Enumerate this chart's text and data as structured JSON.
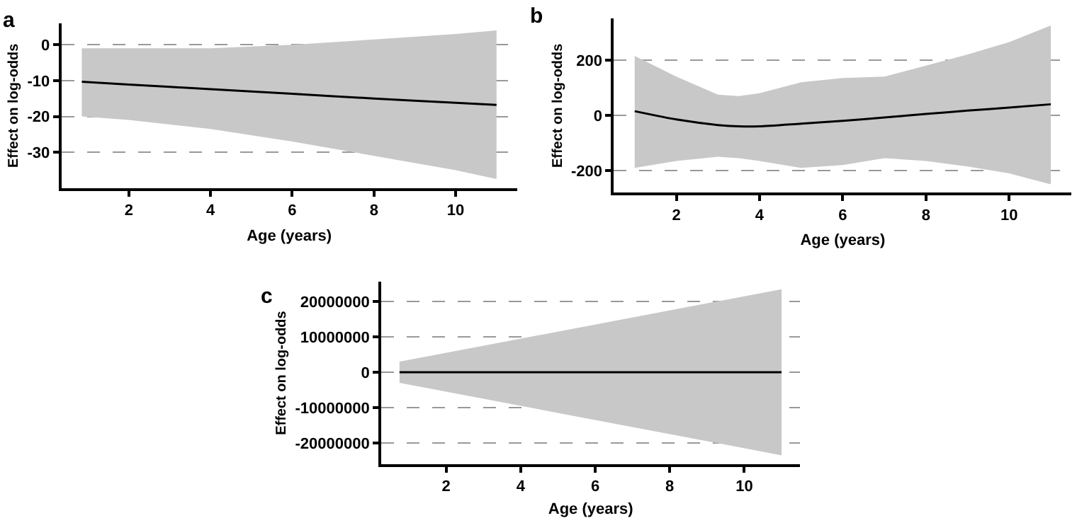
{
  "chart_data": [
    {
      "type": "line",
      "title": "a",
      "xlabel": "Age (years)",
      "ylabel": "Effect on log-odds",
      "xlim": [
        0.35,
        11.5
      ],
      "xticks": [
        2,
        4,
        6,
        8,
        10
      ],
      "ylim": [
        -40,
        6
      ],
      "yticks": [
        -30,
        -20,
        -10,
        0
      ],
      "grid": "y",
      "x": [
        0.85,
        2,
        4,
        6,
        8,
        10,
        11
      ],
      "series": [
        {
          "color": "#000000",
          "values": [
            -10.3,
            -11.1,
            -12.4,
            -13.7,
            -15,
            -16.2,
            -16.8
          ],
          "lower": [
            -20,
            -21,
            -23.5,
            -27,
            -31,
            -35,
            -37.5
          ],
          "upper": [
            -1,
            -1,
            -1,
            0,
            1.5,
            3,
            4
          ]
        }
      ]
    },
    {
      "type": "line",
      "title": "b",
      "xlabel": "Age (years)",
      "ylabel": "Effect on log-odds",
      "xlim": [
        0.5,
        11.5
      ],
      "xticks": [
        2,
        4,
        6,
        8,
        10
      ],
      "ylim": [
        -280,
        350
      ],
      "yticks": [
        -200,
        0,
        200
      ],
      "grid": "y",
      "x": [
        1,
        2,
        3,
        3.5,
        4,
        5,
        6,
        7,
        8,
        9,
        10,
        11
      ],
      "series": [
        {
          "color": "#000000",
          "values": [
            15,
            -15,
            -35,
            -40,
            -40,
            -30,
            -20,
            -8,
            5,
            17,
            28,
            40
          ],
          "lower": [
            -190,
            -165,
            -150,
            -155,
            -165,
            -190,
            -180,
            -155,
            -165,
            -185,
            -210,
            -250
          ],
          "upper": [
            215,
            140,
            75,
            70,
            80,
            120,
            135,
            140,
            180,
            220,
            265,
            325
          ]
        }
      ]
    },
    {
      "type": "line",
      "title": "c",
      "xlabel": "Age (years)",
      "ylabel": "Effect on log-odds",
      "xlim": [
        0.26,
        11.5
      ],
      "xticks": [
        2,
        4,
        6,
        8,
        10
      ],
      "ylim": [
        -26000000,
        25600000
      ],
      "yticks": [
        -20000000,
        -10000000,
        0,
        10000000,
        20000000
      ],
      "grid": "y",
      "x": [
        0.75,
        11
      ],
      "series": [
        {
          "color": "#000000",
          "values": [
            0,
            0
          ],
          "lower": [
            -3000000,
            -23500000
          ],
          "upper": [
            3000000,
            23500000
          ]
        }
      ]
    }
  ]
}
